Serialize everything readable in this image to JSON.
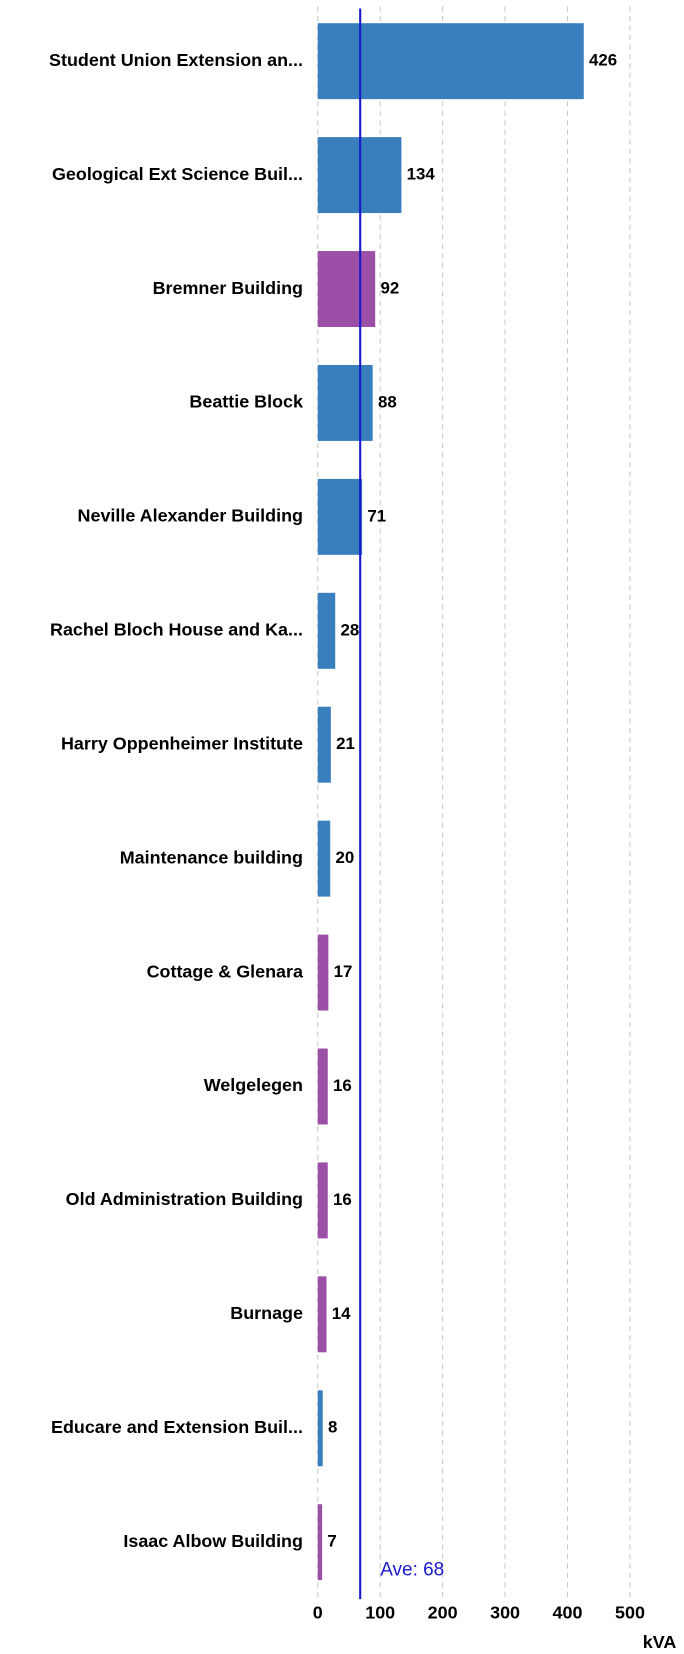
{
  "chart_data": {
    "type": "bar",
    "orientation": "horizontal",
    "categories": [
      "Student Union Extension an...",
      "Geological Ext Science Buil...",
      "Bremner Building",
      "Beattie Block",
      "Neville Alexander Building",
      "Rachel Bloch House and Ka...",
      "Harry Oppenheimer Institute",
      "Maintenance building",
      "Cottage & Glenara",
      "Welgelegen",
      "Old Administration Building",
      "Burnage",
      "Educare and Extension Buil...",
      "Isaac Albow Building"
    ],
    "values": [
      426,
      134,
      92,
      88,
      71,
      28,
      21,
      20,
      17,
      16,
      16,
      14,
      8,
      7
    ],
    "colors": [
      "#3a7fbd",
      "#3a7fbd",
      "#9b4fa6",
      "#3a7fbd",
      "#3a7fbd",
      "#3a7fbd",
      "#3a7fbd",
      "#3a7fbd",
      "#9b4fa6",
      "#9b4fa6",
      "#9b4fa6",
      "#9b4fa6",
      "#3a7fbd",
      "#9b4fa6"
    ],
    "xlabel": "kVA",
    "xlim": [
      0,
      500
    ],
    "xticks": [
      0,
      100,
      200,
      300,
      400,
      500
    ],
    "grid": true,
    "average": {
      "value": 68,
      "label": "Ave: 68",
      "color": "#1a1acc"
    }
  }
}
